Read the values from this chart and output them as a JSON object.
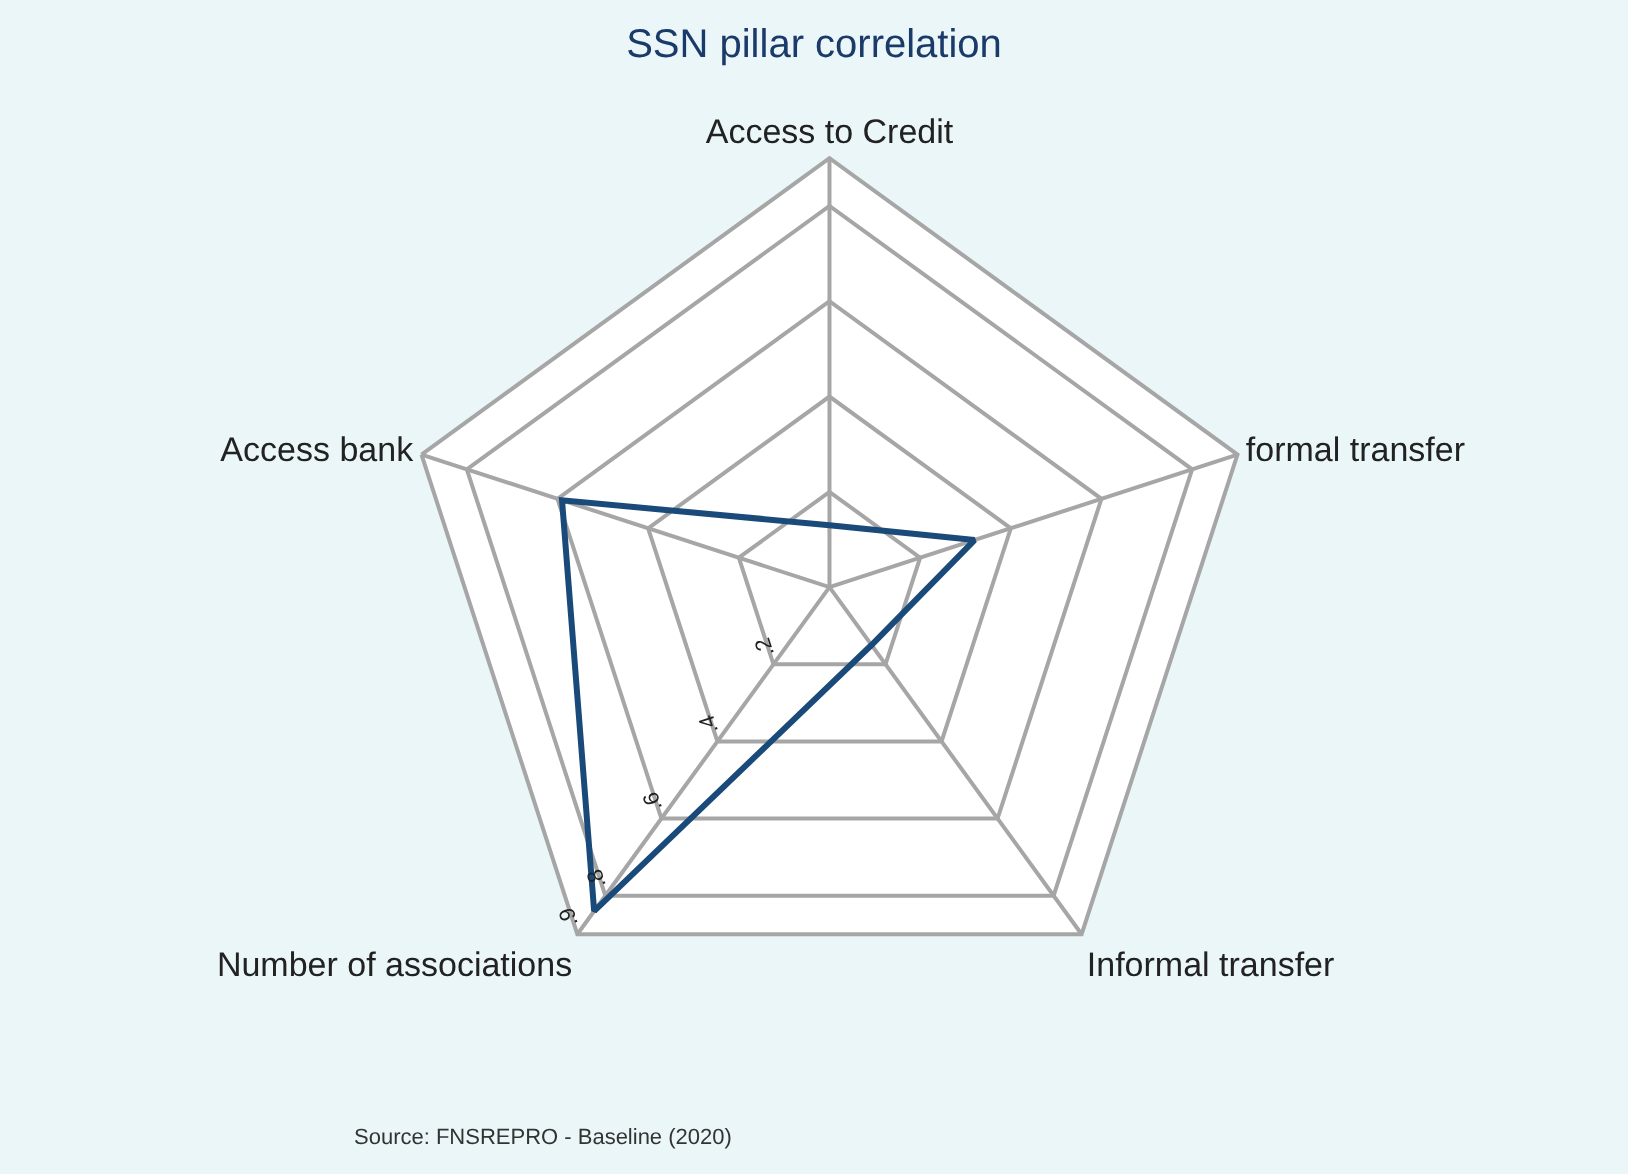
{
  "chart_data": {
    "type": "radar",
    "title": "SSN pillar correlation",
    "categories": [
      "Access to Credit",
      "formal transfer",
      "Informal transfer",
      "Number of associations",
      "Access bank"
    ],
    "series": [
      {
        "color": "#1a4a7a",
        "values": [
          0.13,
          0.32,
          0.15,
          0.84,
          0.59
        ]
      }
    ],
    "ylim": [
      0,
      0.9
    ],
    "yticks": [
      {
        "value": 0.2,
        "label": ".2"
      },
      {
        "value": 0.4,
        "label": ".4"
      },
      {
        "value": 0.6,
        "label": ".6"
      },
      {
        "value": 0.8,
        "label": ".8"
      },
      {
        "value": 0.9,
        "label": ".9"
      }
    ],
    "grid": true,
    "marker": "none",
    "line_style": "solid",
    "annotations": [
      "Source: FNSREPRO - Baseline (2020)"
    ]
  }
}
